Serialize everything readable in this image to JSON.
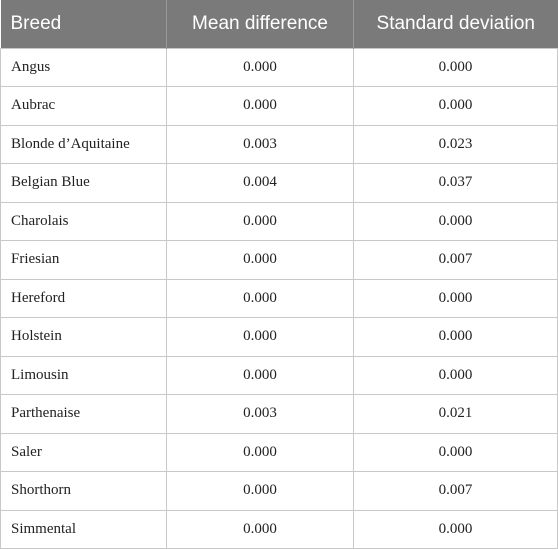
{
  "table": {
    "headers": [
      "Breed",
      "Mean difference",
      "Standard deviation"
    ],
    "rows": [
      {
        "breed": "Angus",
        "mean": "0.000",
        "sd": "0.000"
      },
      {
        "breed": "Aubrac",
        "mean": "0.000",
        "sd": "0.000"
      },
      {
        "breed": "Blonde d’Aquitaine",
        "mean": "0.003",
        "sd": "0.023"
      },
      {
        "breed": "Belgian Blue",
        "mean": "0.004",
        "sd": "0.037"
      },
      {
        "breed": "Charolais",
        "mean": "0.000",
        "sd": "0.000"
      },
      {
        "breed": "Friesian",
        "mean": "0.000",
        "sd": "0.007"
      },
      {
        "breed": "Hereford",
        "mean": "0.000",
        "sd": "0.000"
      },
      {
        "breed": "Holstein",
        "mean": "0.000",
        "sd": "0.000"
      },
      {
        "breed": "Limousin",
        "mean": "0.000",
        "sd": "0.000"
      },
      {
        "breed": "Parthenaise",
        "mean": "0.003",
        "sd": "0.021"
      },
      {
        "breed": "Saler",
        "mean": "0.000",
        "sd": "0.000"
      },
      {
        "breed": "Shorthorn",
        "mean": "0.000",
        "sd": "0.007"
      },
      {
        "breed": "Simmental",
        "mean": "0.000",
        "sd": "0.000"
      }
    ]
  },
  "colors": {
    "header_background": "#7a7a7a",
    "header_text": "#ffffff",
    "grid_lines": "#c8c8c8"
  }
}
